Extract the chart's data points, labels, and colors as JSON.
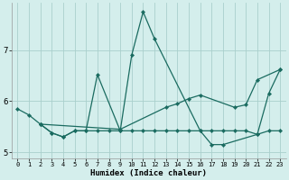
{
  "xlabel": "Humidex (Indice chaleur)",
  "bg_color": "#d4eeec",
  "grid_color": "#aacfcc",
  "line_color": "#1a6b60",
  "xlim": [
    -0.5,
    23.5
  ],
  "ylim": [
    4.88,
    7.92
  ],
  "yticks": [
    5,
    6,
    7
  ],
  "xticks": [
    0,
    1,
    2,
    3,
    4,
    5,
    6,
    7,
    8,
    9,
    10,
    11,
    12,
    13,
    14,
    15,
    16,
    17,
    18,
    19,
    20,
    21,
    22,
    23
  ],
  "series_a_x": [
    0,
    1,
    2,
    3,
    4,
    5,
    6,
    7,
    9,
    10,
    11,
    12,
    16,
    17,
    18,
    21,
    22,
    23
  ],
  "series_a_y": [
    5.85,
    5.73,
    5.55,
    5.38,
    5.3,
    5.42,
    5.42,
    6.52,
    5.42,
    6.9,
    7.75,
    7.22,
    5.42,
    5.15,
    5.15,
    5.35,
    6.15,
    6.62
  ],
  "series_b_x": [
    2,
    9,
    13,
    14,
    15,
    16,
    19,
    20,
    21,
    23
  ],
  "series_b_y": [
    5.55,
    5.45,
    5.88,
    5.95,
    6.05,
    6.12,
    5.88,
    5.93,
    6.42,
    6.62
  ],
  "series_c_x": [
    2,
    3,
    4,
    5,
    6,
    7,
    8,
    9,
    10,
    11,
    12,
    13,
    14,
    15,
    16,
    17,
    18,
    19,
    20,
    21,
    22,
    23
  ],
  "series_c_y": [
    5.55,
    5.38,
    5.3,
    5.42,
    5.42,
    5.42,
    5.42,
    5.42,
    5.42,
    5.42,
    5.42,
    5.42,
    5.42,
    5.42,
    5.42,
    5.42,
    5.42,
    5.42,
    5.42,
    5.35,
    5.42,
    5.42
  ]
}
